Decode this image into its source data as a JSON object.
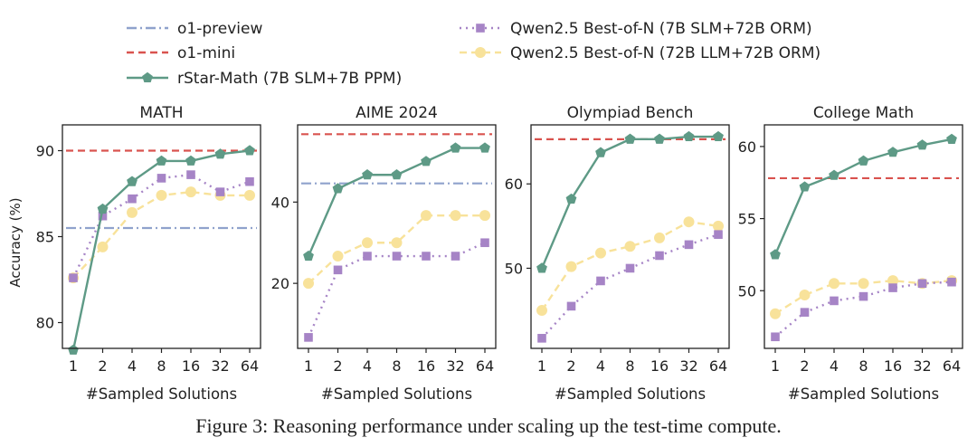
{
  "caption": "Figure 3: Reasoning performance under scaling up the test-time compute.",
  "ylabel": "Accuracy (%)",
  "colors": {
    "o1_preview": "#8fa2cc",
    "o1_mini": "#d9534f",
    "rstar": "#5e9a86",
    "qwen_slm": "#a684c6",
    "qwen_llm": "#f8e29a"
  },
  "legend": [
    {
      "key": "o1_preview",
      "label": "o1-preview",
      "style": "dashdot",
      "marker": "none"
    },
    {
      "key": "o1_mini",
      "label": "o1-mini",
      "style": "dashed",
      "marker": "none"
    },
    {
      "key": "rstar",
      "label": "rStar-Math (7B SLM+7B PPM)",
      "style": "solid",
      "marker": "pentagon"
    },
    {
      "key": "qwen_slm",
      "label": "Qwen2.5 Best-of-N (7B SLM+72B ORM)",
      "style": "dotted",
      "marker": "square"
    },
    {
      "key": "qwen_llm",
      "label": "Qwen2.5 Best-of-N (72B LLM+72B ORM)",
      "style": "dashed",
      "marker": "circle"
    }
  ],
  "chart_data": [
    {
      "type": "line",
      "title": "MATH",
      "xlabel": "#Sampled Solutions",
      "ylabel": "Accuracy (%)",
      "categories": [
        "1",
        "2",
        "4",
        "8",
        "16",
        "32",
        "64"
      ],
      "ylim": [
        78.5,
        91.5
      ],
      "yticks": [
        80,
        85,
        90
      ],
      "hlines": [
        {
          "key": "o1_preview",
          "value": 85.5
        },
        {
          "key": "o1_mini",
          "value": 90.0
        }
      ],
      "series": [
        {
          "key": "rstar",
          "name": "rStar-Math (7B SLM+7B PPM)",
          "values": [
            78.4,
            86.6,
            88.2,
            89.4,
            89.4,
            89.8,
            90.0
          ]
        },
        {
          "key": "qwen_slm",
          "name": "Qwen2.5 Best-of-N (7B SLM+72B ORM)",
          "values": [
            82.6,
            86.2,
            87.2,
            88.4,
            88.6,
            87.6,
            88.2
          ]
        },
        {
          "key": "qwen_llm",
          "name": "Qwen2.5 Best-of-N (72B LLM+72B ORM)",
          "values": [
            82.6,
            84.4,
            86.4,
            87.4,
            87.6,
            87.4,
            87.4
          ]
        }
      ]
    },
    {
      "type": "line",
      "title": "AIME 2024",
      "xlabel": "#Sampled Solutions",
      "ylabel": "",
      "categories": [
        "1",
        "2",
        "4",
        "8",
        "16",
        "32",
        "64"
      ],
      "ylim": [
        4.0,
        59.0
      ],
      "yticks": [
        20,
        40
      ],
      "hlines": [
        {
          "key": "o1_preview",
          "value": 44.6
        },
        {
          "key": "o1_mini",
          "value": 56.7
        }
      ],
      "series": [
        {
          "key": "rstar",
          "name": "rStar-Math (7B SLM+7B PPM)",
          "values": [
            26.7,
            43.3,
            46.7,
            46.7,
            50.0,
            53.3,
            53.3
          ]
        },
        {
          "key": "qwen_slm",
          "name": "Qwen2.5 Best-of-N (7B SLM+72B ORM)",
          "values": [
            6.7,
            23.3,
            26.7,
            26.7,
            26.7,
            26.7,
            30.0
          ]
        },
        {
          "key": "qwen_llm",
          "name": "Qwen2.5 Best-of-N (72B LLM+72B ORM)",
          "values": [
            20.0,
            26.7,
            30.0,
            30.0,
            36.7,
            36.7,
            36.7
          ]
        }
      ]
    },
    {
      "type": "line",
      "title": "Olympiad Bench",
      "xlabel": "#Sampled Solutions",
      "ylabel": "",
      "categories": [
        "1",
        "2",
        "4",
        "8",
        "16",
        "32",
        "64"
      ],
      "ylim": [
        40.5,
        67.0
      ],
      "yticks": [
        50,
        60
      ],
      "hlines": [
        {
          "key": "o1_mini",
          "value": 65.3
        }
      ],
      "series": [
        {
          "key": "rstar",
          "name": "rStar-Math (7B SLM+7B PPM)",
          "values": [
            50.0,
            58.2,
            63.7,
            65.3,
            65.3,
            65.6,
            65.6
          ]
        },
        {
          "key": "qwen_slm",
          "name": "Qwen2.5 Best-of-N (7B SLM+72B ORM)",
          "values": [
            41.7,
            45.5,
            48.5,
            50.0,
            51.5,
            52.8,
            54.0
          ]
        },
        {
          "key": "qwen_llm",
          "name": "Qwen2.5 Best-of-N (72B LLM+72B ORM)",
          "values": [
            45.0,
            50.2,
            51.8,
            52.6,
            53.6,
            55.5,
            55.0
          ]
        }
      ]
    },
    {
      "type": "line",
      "title": "College Math",
      "xlabel": "#Sampled Solutions",
      "ylabel": "",
      "categories": [
        "1",
        "2",
        "4",
        "8",
        "16",
        "32",
        "64"
      ],
      "ylim": [
        46.0,
        61.5
      ],
      "yticks": [
        50,
        55,
        60
      ],
      "hlines": [
        {
          "key": "o1_mini",
          "value": 57.8
        }
      ],
      "series": [
        {
          "key": "rstar",
          "name": "rStar-Math (7B SLM+7B PPM)",
          "values": [
            52.5,
            57.2,
            58.0,
            59.0,
            59.6,
            60.1,
            60.5
          ]
        },
        {
          "key": "qwen_slm",
          "name": "Qwen2.5 Best-of-N (7B SLM+72B ORM)",
          "values": [
            46.8,
            48.5,
            49.3,
            49.6,
            50.2,
            50.5,
            50.6
          ]
        },
        {
          "key": "qwen_llm",
          "name": "Qwen2.5 Best-of-N (72B LLM+72B ORM)",
          "values": [
            48.4,
            49.7,
            50.5,
            50.5,
            50.7,
            50.5,
            50.7
          ]
        }
      ]
    }
  ]
}
